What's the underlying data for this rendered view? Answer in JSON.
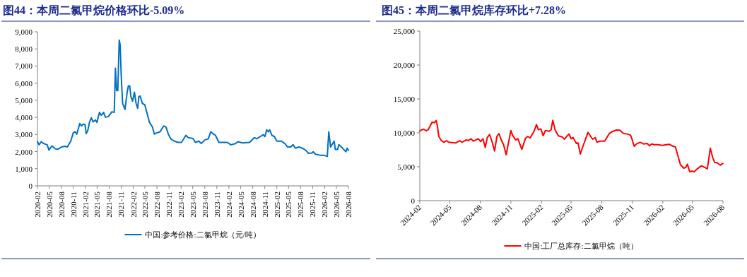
{
  "chart_data": [
    {
      "type": "line",
      "title": "图44：本周二氯甲烷价格环比-5.09%",
      "legend": "bottom",
      "xlim": [
        "2020-02",
        "2026-08"
      ],
      "xticks": [
        "2020-02",
        "2020-05",
        "2020-08",
        "2020-11",
        "2021-02",
        "2021-05",
        "2021-08",
        "2021-11",
        "2022-02",
        "2022-05",
        "2022-08",
        "2022-11",
        "2023-02",
        "2023-05",
        "2023-08",
        "2023-11",
        "2024-02",
        "2024-05",
        "2024-08",
        "2024-11",
        "2025-02",
        "2025-05",
        "2025-08",
        "2025-11",
        "2026-02",
        "2026-05",
        "2026-08"
      ],
      "ylim": [
        0,
        9000
      ],
      "yticks": [
        0,
        {
          "value": 1000,
          "label": "1,000"
        },
        {
          "value": 2000,
          "label": "2,000"
        },
        {
          "value": 3000,
          "label": "3,000"
        },
        {
          "value": 4000,
          "label": "4,000"
        },
        {
          "value": 5000,
          "label": "5,000"
        },
        {
          "value": 6000,
          "label": "6,000"
        },
        {
          "value": 7000,
          "label": "7,000"
        },
        {
          "value": 8000,
          "label": "8,000"
        },
        {
          "value": 9000,
          "label": "9,000"
        }
      ],
      "x": [
        "2020-02-01",
        "2020-02-13",
        "2020-03-01",
        "2020-03-19",
        "2020-04-15",
        "2020-04-29",
        "2020-05-21",
        "2020-06-17",
        "2020-07-05",
        "2020-08-02",
        "2020-08-29",
        "2020-09-16",
        "2020-10-12",
        "2020-10-31",
        "2020-11-14",
        "2020-11-27",
        "2020-12-20",
        "2021-01-02",
        "2021-01-15",
        "2021-01-29",
        "2021-02-07",
        "2021-02-19",
        "2021-03-04",
        "2021-03-18",
        "2021-03-31",
        "2021-04-18",
        "2021-04-30",
        "2021-05-19",
        "2021-06-02",
        "2021-06-20",
        "2021-07-04",
        "2021-07-26",
        "2021-08-22",
        "2021-09-09",
        "2021-09-18",
        "2021-09-27",
        "2021-10-06",
        "2021-10-17",
        "2021-10-24",
        "2021-11-02",
        "2021-11-12",
        "2021-11-30",
        "2021-12-17",
        "2021-12-26",
        "2022-01-05",
        "2022-01-14",
        "2022-01-27",
        "2022-02-10",
        "2022-02-23",
        "2022-03-07",
        "2022-03-16",
        "2022-03-25",
        "2022-04-12",
        "2022-04-30",
        "2022-05-12",
        "2022-06-05",
        "2022-06-28",
        "2022-07-12",
        "2022-07-29",
        "2022-08-25",
        "2022-09-21",
        "2022-10-09",
        "2022-10-27",
        "2022-11-14",
        "2022-12-11",
        "2023-01-08",
        "2023-02-04",
        "2023-03-10",
        "2023-03-28",
        "2023-05-03",
        "2023-05-21",
        "2023-06-17",
        "2023-07-05",
        "2023-08-01",
        "2023-08-28",
        "2023-09-15",
        "2023-10-03",
        "2023-10-21",
        "2023-11-17",
        "2023-12-23",
        "2024-01-19",
        "2024-02-16",
        "2024-03-22",
        "2024-04-09",
        "2024-05-15",
        "2024-07-08",
        "2024-08-13",
        "2024-08-31",
        "2024-09-27",
        "2024-10-20",
        "2024-11-02",
        "2024-11-15",
        "2024-11-29",
        "2024-12-08",
        "2024-12-26",
        "2025-01-13",
        "2025-02-01",
        "2025-03-07",
        "2025-04-03",
        "2025-04-24",
        "2025-05-17",
        "2025-06-05",
        "2025-06-23",
        "2025-07-19",
        "2025-08-16",
        "2025-09-12",
        "2025-09-30",
        "2025-10-27",
        "2025-11-05",
        "2025-11-23",
        "2025-12-29",
        "2026-01-25",
        "2026-02-21",
        "2026-03-04",
        "2026-03-18",
        "2026-04-14",
        "2026-04-23",
        "2026-05-11",
        "2026-05-20",
        "2026-06-08",
        "2026-06-25",
        "2026-07-13",
        "2026-07-22",
        "2026-08-01"
      ],
      "series": [
        {
          "name": "中国:参考价格:二氯甲烷（元/吨）",
          "color": "#0070c0",
          "values": [
            2580,
            2400,
            2580,
            2470,
            2400,
            2090,
            2330,
            2170,
            2130,
            2270,
            2310,
            2270,
            2610,
            3090,
            3160,
            3020,
            3640,
            3500,
            3600,
            3570,
            3050,
            3230,
            3710,
            3980,
            3740,
            3850,
            3710,
            4290,
            4120,
            4290,
            4010,
            4050,
            4330,
            4290,
            6870,
            5560,
            5560,
            8520,
            8240,
            6320,
            4810,
            4460,
            5490,
            5840,
            5840,
            5220,
            4950,
            5470,
            4810,
            4530,
            5220,
            5250,
            4810,
            4740,
            4400,
            3710,
            3430,
            3020,
            3090,
            3160,
            3500,
            3430,
            3020,
            2750,
            2610,
            2540,
            2540,
            2950,
            2820,
            2770,
            2540,
            2610,
            2470,
            2680,
            2750,
            3160,
            3050,
            2950,
            2540,
            2540,
            2540,
            2400,
            2470,
            2580,
            2510,
            2540,
            2820,
            2750,
            2880,
            2990,
            2880,
            3270,
            3160,
            3270,
            2950,
            2880,
            2610,
            2610,
            2470,
            2270,
            2270,
            2400,
            2200,
            2270,
            2200,
            2060,
            1900,
            1920,
            1990,
            1850,
            1790,
            1790,
            1720,
            3160,
            2270,
            2610,
            2130,
            2130,
            2400,
            2270,
            2130,
            1990,
            2200,
            2080
          ]
        }
      ]
    },
    {
      "type": "line",
      "title": "图45：本周二氯甲烷库存环比+7.28%",
      "legend": "bottom",
      "xlim": [
        "2024-02",
        "2026-08"
      ],
      "xticks": [
        "2024-02",
        "2024-05",
        "2024-08",
        "2024-11",
        "2025-02",
        "2025-05",
        "2025-08",
        "2025-11",
        "2026-02",
        "2026-05",
        "2026-08"
      ],
      "ylim": [
        0,
        25000
      ],
      "yticks": [
        0,
        {
          "value": 5000,
          "label": "5,000"
        },
        {
          "value": 10000,
          "label": "10,000"
        },
        {
          "value": 15000,
          "label": "15,000"
        },
        {
          "value": 20000,
          "label": "20,000"
        },
        {
          "value": 25000,
          "label": "25,000"
        }
      ],
      "x": [
        "2024-02-01",
        "2024-02-06",
        "2024-02-13",
        "2024-02-20",
        "2024-02-26",
        "2024-03-09",
        "2024-03-16",
        "2024-03-21",
        "2024-03-25",
        "2024-03-29",
        "2024-04-06",
        "2024-04-14",
        "2024-04-21",
        "2024-04-28",
        "2024-05-19",
        "2024-05-31",
        "2024-06-07",
        "2024-06-20",
        "2024-06-27",
        "2024-07-04",
        "2024-07-11",
        "2024-07-26",
        "2024-08-02",
        "2024-08-09",
        "2024-08-16",
        "2024-08-22",
        "2024-08-29",
        "2024-09-05",
        "2024-09-13",
        "2024-09-20",
        "2024-09-26",
        "2024-10-03",
        "2024-10-10",
        "2024-10-18",
        "2024-10-23",
        "2024-11-01",
        "2024-11-06",
        "2024-11-15",
        "2024-11-22",
        "2024-12-04",
        "2024-12-15",
        "2024-12-22",
        "2024-12-29",
        "2025-01-09",
        "2025-01-17",
        "2025-01-23",
        "2025-01-30",
        "2025-02-06",
        "2025-02-13",
        "2025-02-24",
        "2025-03-02",
        "2025-03-07",
        "2025-03-14",
        "2025-03-24",
        "2025-04-04",
        "2025-04-11",
        "2025-04-18",
        "2025-04-25",
        "2025-05-01",
        "2025-05-07",
        "2025-05-17",
        "2025-05-22",
        "2025-05-29",
        "2025-06-05",
        "2025-06-14",
        "2025-06-21",
        "2025-06-28",
        "2025-07-05",
        "2025-07-13",
        "2025-07-18",
        "2025-07-27",
        "2025-08-10",
        "2025-08-17",
        "2025-08-24",
        "2025-09-04",
        "2025-09-15",
        "2025-09-25",
        "2025-10-06",
        "2025-10-17",
        "2025-10-27",
        "2025-10-31",
        "2025-11-07",
        "2025-11-14",
        "2025-11-25",
        "2025-12-05",
        "2025-12-16",
        "2025-12-23",
        "2025-12-30",
        "2026-01-06",
        "2026-01-17",
        "2026-01-31",
        "2026-02-11",
        "2026-02-21",
        "2026-03-04",
        "2026-03-11",
        "2026-03-18",
        "2026-03-26",
        "2026-04-05",
        "2026-04-11",
        "2026-04-16",
        "2026-04-23",
        "2026-04-30",
        "2026-05-07",
        "2026-05-14",
        "2026-05-28",
        "2026-06-07",
        "2026-06-15",
        "2026-06-24",
        "2026-07-01",
        "2026-07-07",
        "2026-07-14",
        "2026-07-24",
        "2026-08-01"
      ],
      "series": [
        {
          "name": "中国:工厂总库存:二氯甲烷（吨）",
          "color": "#ff0000",
          "values": [
            10240,
            10450,
            10520,
            10310,
            10450,
            11560,
            11490,
            11810,
            11040,
            9480,
            8850,
            8610,
            8850,
            8610,
            8510,
            8850,
            8610,
            8960,
            8850,
            9130,
            8780,
            9130,
            8720,
            9130,
            7850,
            9310,
            9760,
            8780,
            7330,
            9480,
            9900,
            8960,
            8260,
            6770,
            8090,
            10350,
            9650,
            8960,
            9130,
            7570,
            9200,
            9480,
            9240,
            10170,
            11220,
            10450,
            10590,
            9580,
            10350,
            10240,
            10450,
            11840,
            10450,
            9550,
            9410,
            9060,
            9480,
            9830,
            9130,
            9310,
            8440,
            8510,
            6880,
            7920,
            9130,
            10070,
            9550,
            9060,
            9310,
            8610,
            8780,
            8780,
            9310,
            9900,
            10240,
            10420,
            10380,
            9900,
            9830,
            9650,
            9130,
            8020,
            8370,
            8610,
            8370,
            8440,
            8090,
            8370,
            8260,
            8260,
            8160,
            8260,
            8300,
            8020,
            7920,
            6700,
            5310,
            4790,
            4900,
            5380,
            4270,
            4340,
            4270,
            4620,
            5140,
            4900,
            4690,
            7740,
            6350,
            5660,
            5590,
            5240,
            5500
          ]
        }
      ]
    }
  ]
}
